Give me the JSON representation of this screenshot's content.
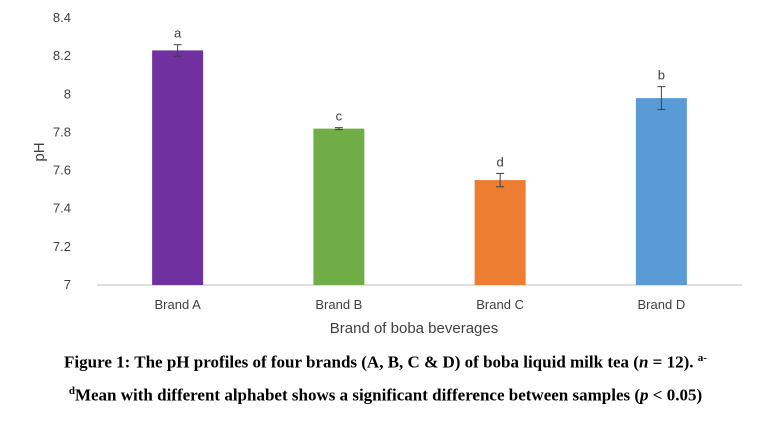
{
  "chart_data": {
    "type": "bar",
    "categories": [
      "Brand A",
      "Brand B",
      "Brand C",
      "Brand D"
    ],
    "values": [
      8.23,
      7.82,
      7.55,
      7.98
    ],
    "error": [
      0.03,
      0.005,
      0.035,
      0.06
    ],
    "sig_letters": [
      "a",
      "c",
      "d",
      "b"
    ],
    "colors": [
      "#7030a0",
      "#70ad47",
      "#ed7d31",
      "#5b9bd5"
    ],
    "xlabel": "Brand of boba beverages",
    "ylabel": "pH",
    "ylim": [
      7,
      8.4
    ],
    "yticks": [
      "7",
      "7.2",
      "7.4",
      "7.6",
      "7.8",
      "8",
      "8.2",
      "8.4"
    ],
    "grid": false
  },
  "caption": {
    "line1_prefix": "Figure 1: The pH profiles of four brands (A, B, C & D) of boba liquid milk tea (",
    "n_symbol": "n",
    "line1_suffix": " = 12). ",
    "sup_1": "a-",
    "sup_2": "d",
    "line2_text": "Mean with different alphabet shows a significant difference between samples (",
    "p_symbol": "p",
    "line2_suffix": " < 0.05)"
  }
}
